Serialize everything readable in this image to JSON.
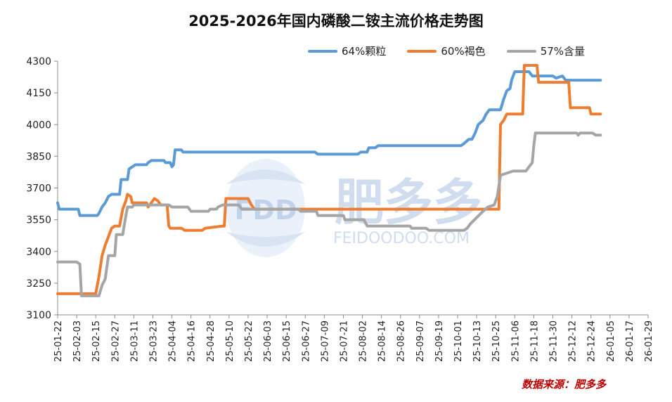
{
  "chart_data": {
    "type": "line",
    "title": "2025-2026年国内磷酸二铵主流价格走势图",
    "xlabel": "",
    "ylabel": "",
    "ylim": [
      3100,
      4300
    ],
    "yticks": [
      3100,
      3250,
      3400,
      3550,
      3700,
      3850,
      4000,
      4150,
      4300
    ],
    "x_start": "2025-01-22",
    "x_end": "2026-01-29",
    "xtick_labels": [
      "25-01-22",
      "25-02-03",
      "25-02-15",
      "25-02-27",
      "25-03-11",
      "25-03-23",
      "25-04-04",
      "25-04-16",
      "25-04-28",
      "25-05-10",
      "25-05-22",
      "25-06-03",
      "25-06-15",
      "25-06-27",
      "25-07-09",
      "25-07-21",
      "25-08-02",
      "25-08-14",
      "25-08-26",
      "25-09-07",
      "25-09-19",
      "25-10-01",
      "25-10-13",
      "25-10-25",
      "25-11-06",
      "25-11-18",
      "25-11-30",
      "25-12-12",
      "25-12-24",
      "26-01-05",
      "26-01-17",
      "26-01-29"
    ],
    "legend_position": "top-right",
    "series": [
      {
        "name": "64%颗粒",
        "color": "#5b9bd5",
        "points": [
          [
            0,
            3630
          ],
          [
            1,
            3600
          ],
          [
            13,
            3600
          ],
          [
            14,
            3570
          ],
          [
            25,
            3570
          ],
          [
            26,
            3580
          ],
          [
            28,
            3610
          ],
          [
            30,
            3630
          ],
          [
            32,
            3660
          ],
          [
            34,
            3670
          ],
          [
            39,
            3670
          ],
          [
            40,
            3740
          ],
          [
            44,
            3740
          ],
          [
            45,
            3790
          ],
          [
            47,
            3800
          ],
          [
            49,
            3810
          ],
          [
            56,
            3810
          ],
          [
            57,
            3820
          ],
          [
            59,
            3830
          ],
          [
            67,
            3830
          ],
          [
            68,
            3820
          ],
          [
            71,
            3820
          ],
          [
            72,
            3800
          ],
          [
            73,
            3810
          ],
          [
            74,
            3880
          ],
          [
            78,
            3880
          ],
          [
            79,
            3870
          ],
          [
            162,
            3870
          ],
          [
            164,
            3860
          ],
          [
            189,
            3860
          ],
          [
            191,
            3870
          ],
          [
            195,
            3870
          ],
          [
            196,
            3890
          ],
          [
            200,
            3890
          ],
          [
            202,
            3900
          ],
          [
            254,
            3900
          ],
          [
            256,
            3910
          ],
          [
            259,
            3930
          ],
          [
            261,
            3930
          ],
          [
            263,
            3960
          ],
          [
            265,
            4000
          ],
          [
            268,
            4020
          ],
          [
            270,
            4050
          ],
          [
            272,
            4070
          ],
          [
            279,
            4070
          ],
          [
            281,
            4120
          ],
          [
            283,
            4160
          ],
          [
            285,
            4170
          ],
          [
            286,
            4210
          ],
          [
            288,
            4250
          ],
          [
            297,
            4250
          ],
          [
            299,
            4230
          ],
          [
            312,
            4230
          ],
          [
            314,
            4220
          ],
          [
            318,
            4230
          ],
          [
            320,
            4210
          ],
          [
            342,
            4210
          ]
        ]
      },
      {
        "name": "60%褐色",
        "color": "#ed7d31",
        "points": [
          [
            0,
            3200
          ],
          [
            23,
            3200
          ],
          [
            24,
            3200
          ],
          [
            26,
            3280
          ],
          [
            28,
            3380
          ],
          [
            30,
            3430
          ],
          [
            32,
            3470
          ],
          [
            34,
            3510
          ],
          [
            36,
            3520
          ],
          [
            39,
            3520
          ],
          [
            41,
            3600
          ],
          [
            43,
            3640
          ],
          [
            44,
            3670
          ],
          [
            46,
            3660
          ],
          [
            47,
            3630
          ],
          [
            56,
            3630
          ],
          [
            57,
            3610
          ],
          [
            59,
            3630
          ],
          [
            61,
            3650
          ],
          [
            63,
            3640
          ],
          [
            65,
            3620
          ],
          [
            69,
            3620
          ],
          [
            70,
            3520
          ],
          [
            71,
            3510
          ],
          [
            78,
            3510
          ],
          [
            80,
            3500
          ],
          [
            91,
            3500
          ],
          [
            93,
            3510
          ],
          [
            104,
            3520
          ],
          [
            105,
            3520
          ],
          [
            106,
            3650
          ],
          [
            120,
            3650
          ],
          [
            122,
            3620
          ],
          [
            124,
            3600
          ],
          [
            278,
            3600
          ],
          [
            279,
            4000
          ],
          [
            281,
            4020
          ],
          [
            283,
            4050
          ],
          [
            293,
            4050
          ],
          [
            294,
            4280
          ],
          [
            302,
            4280
          ],
          [
            303,
            4200
          ],
          [
            322,
            4200
          ],
          [
            323,
            4080
          ],
          [
            335,
            4080
          ],
          [
            336,
            4050
          ],
          [
            342,
            4050
          ]
        ]
      },
      {
        "name": "57%含量",
        "color": "#a5a5a5",
        "points": [
          [
            0,
            3350
          ],
          [
            12,
            3350
          ],
          [
            14,
            3340
          ],
          [
            15,
            3190
          ],
          [
            26,
            3190
          ],
          [
            28,
            3240
          ],
          [
            30,
            3270
          ],
          [
            32,
            3380
          ],
          [
            36,
            3380
          ],
          [
            37,
            3480
          ],
          [
            41,
            3480
          ],
          [
            43,
            3570
          ],
          [
            44,
            3610
          ],
          [
            47,
            3610
          ],
          [
            48,
            3620
          ],
          [
            70,
            3620
          ],
          [
            72,
            3610
          ],
          [
            82,
            3610
          ],
          [
            84,
            3590
          ],
          [
            95,
            3590
          ],
          [
            96,
            3600
          ],
          [
            100,
            3600
          ],
          [
            101,
            3610
          ],
          [
            104,
            3620
          ],
          [
            114,
            3620
          ],
          [
            116,
            3600
          ],
          [
            152,
            3600
          ],
          [
            153,
            3590
          ],
          [
            163,
            3590
          ],
          [
            164,
            3570
          ],
          [
            180,
            3570
          ],
          [
            181,
            3550
          ],
          [
            193,
            3550
          ],
          [
            195,
            3520
          ],
          [
            222,
            3520
          ],
          [
            223,
            3510
          ],
          [
            232,
            3510
          ],
          [
            234,
            3500
          ],
          [
            256,
            3500
          ],
          [
            258,
            3510
          ],
          [
            260,
            3530
          ],
          [
            264,
            3560
          ],
          [
            268,
            3590
          ],
          [
            271,
            3610
          ],
          [
            275,
            3620
          ],
          [
            277,
            3660
          ],
          [
            279,
            3760
          ],
          [
            283,
            3770
          ],
          [
            287,
            3780
          ],
          [
            295,
            3780
          ],
          [
            297,
            3800
          ],
          [
            299,
            3820
          ],
          [
            300,
            3900
          ],
          [
            301,
            3960
          ],
          [
            327,
            3960
          ],
          [
            328,
            3950
          ],
          [
            329,
            3960
          ],
          [
            337,
            3960
          ],
          [
            339,
            3950
          ],
          [
            342,
            3950
          ]
        ]
      }
    ]
  },
  "watermark": {
    "logo_text": "FDD",
    "brand_text": "肥多多",
    "domain_text": "FEIDOODOO.COM"
  },
  "source_text": "数据来源：肥多多",
  "colors": {
    "axis": "#888888",
    "text": "#222222",
    "watermark": "#9cb6d8"
  }
}
